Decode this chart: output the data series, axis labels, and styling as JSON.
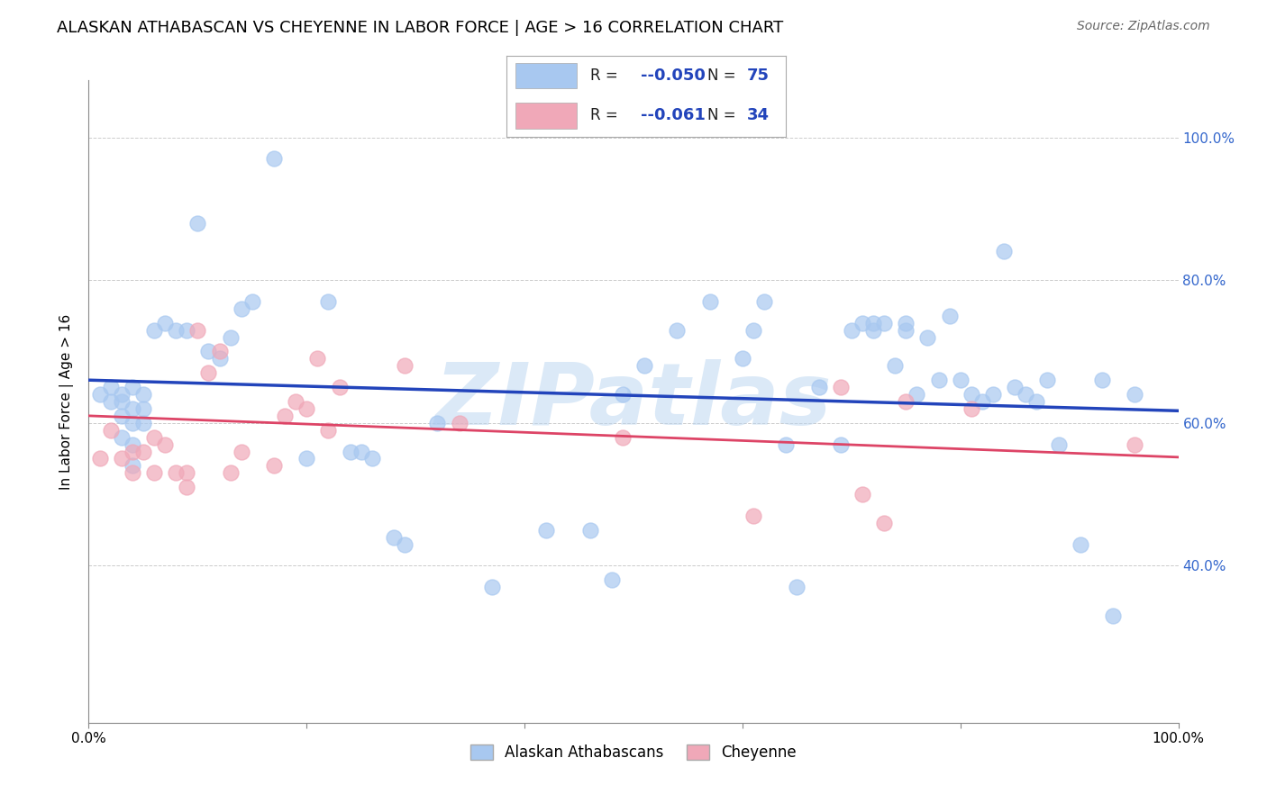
{
  "title": "ALASKAN ATHABASCAN VS CHEYENNE IN LABOR FORCE | AGE > 16 CORRELATION CHART",
  "source": "Source: ZipAtlas.com",
  "ylabel": "In Labor Force | Age > 16",
  "xlim": [
    0.0,
    1.0
  ],
  "ylim": [
    0.18,
    1.08
  ],
  "y_ticks_right": [
    0.4,
    0.6,
    0.8,
    1.0
  ],
  "y_tick_labels_right": [
    "40.0%",
    "60.0%",
    "80.0%",
    "100.0%"
  ],
  "blue_color": "#a8c8f0",
  "pink_color": "#f0a8b8",
  "trend_blue": "#2244bb",
  "trend_pink": "#dd4466",
  "watermark": "ZIPatlas",
  "blue_scatter_x": [
    0.01,
    0.02,
    0.02,
    0.03,
    0.03,
    0.03,
    0.03,
    0.04,
    0.04,
    0.04,
    0.04,
    0.04,
    0.05,
    0.05,
    0.05,
    0.06,
    0.07,
    0.08,
    0.09,
    0.1,
    0.11,
    0.12,
    0.13,
    0.14,
    0.15,
    0.17,
    0.2,
    0.22,
    0.24,
    0.25,
    0.26,
    0.28,
    0.29,
    0.32,
    0.37,
    0.42,
    0.46,
    0.48,
    0.49,
    0.51,
    0.54,
    0.57,
    0.6,
    0.61,
    0.62,
    0.64,
    0.65,
    0.67,
    0.69,
    0.7,
    0.71,
    0.72,
    0.72,
    0.73,
    0.74,
    0.75,
    0.75,
    0.76,
    0.77,
    0.78,
    0.79,
    0.8,
    0.81,
    0.82,
    0.83,
    0.84,
    0.85,
    0.86,
    0.87,
    0.88,
    0.89,
    0.91,
    0.93,
    0.94,
    0.96
  ],
  "blue_scatter_y": [
    0.64,
    0.65,
    0.63,
    0.64,
    0.63,
    0.61,
    0.58,
    0.65,
    0.62,
    0.6,
    0.57,
    0.54,
    0.64,
    0.62,
    0.6,
    0.73,
    0.74,
    0.73,
    0.73,
    0.88,
    0.7,
    0.69,
    0.72,
    0.76,
    0.77,
    0.97,
    0.55,
    0.77,
    0.56,
    0.56,
    0.55,
    0.44,
    0.43,
    0.6,
    0.37,
    0.45,
    0.45,
    0.38,
    0.64,
    0.68,
    0.73,
    0.77,
    0.69,
    0.73,
    0.77,
    0.57,
    0.37,
    0.65,
    0.57,
    0.73,
    0.74,
    0.73,
    0.74,
    0.74,
    0.68,
    0.73,
    0.74,
    0.64,
    0.72,
    0.66,
    0.75,
    0.66,
    0.64,
    0.63,
    0.64,
    0.84,
    0.65,
    0.64,
    0.63,
    0.66,
    0.57,
    0.43,
    0.66,
    0.33,
    0.64
  ],
  "pink_scatter_x": [
    0.01,
    0.02,
    0.03,
    0.04,
    0.04,
    0.05,
    0.06,
    0.06,
    0.07,
    0.08,
    0.09,
    0.09,
    0.1,
    0.11,
    0.12,
    0.13,
    0.14,
    0.17,
    0.18,
    0.19,
    0.2,
    0.21,
    0.22,
    0.23,
    0.29,
    0.34,
    0.49,
    0.61,
    0.69,
    0.71,
    0.73,
    0.75,
    0.81,
    0.96
  ],
  "pink_scatter_y": [
    0.55,
    0.59,
    0.55,
    0.56,
    0.53,
    0.56,
    0.58,
    0.53,
    0.57,
    0.53,
    0.53,
    0.51,
    0.73,
    0.67,
    0.7,
    0.53,
    0.56,
    0.54,
    0.61,
    0.63,
    0.62,
    0.69,
    0.59,
    0.65,
    0.68,
    0.6,
    0.58,
    0.47,
    0.65,
    0.5,
    0.46,
    0.63,
    0.62,
    0.57
  ],
  "blue_trend_x": [
    0.0,
    1.0
  ],
  "blue_trend_y": [
    0.66,
    0.617
  ],
  "pink_trend_x": [
    0.0,
    1.0
  ],
  "pink_trend_y": [
    0.61,
    0.552
  ],
  "background_color": "#ffffff",
  "grid_color": "#cccccc",
  "title_fontsize": 13,
  "source_fontsize": 10,
  "watermark_color": "#b8d4f0",
  "watermark_alpha": 0.5,
  "legend_blue_r": "-0.050",
  "legend_blue_n": "75",
  "legend_pink_r": "-0.061",
  "legend_pink_n": "34"
}
